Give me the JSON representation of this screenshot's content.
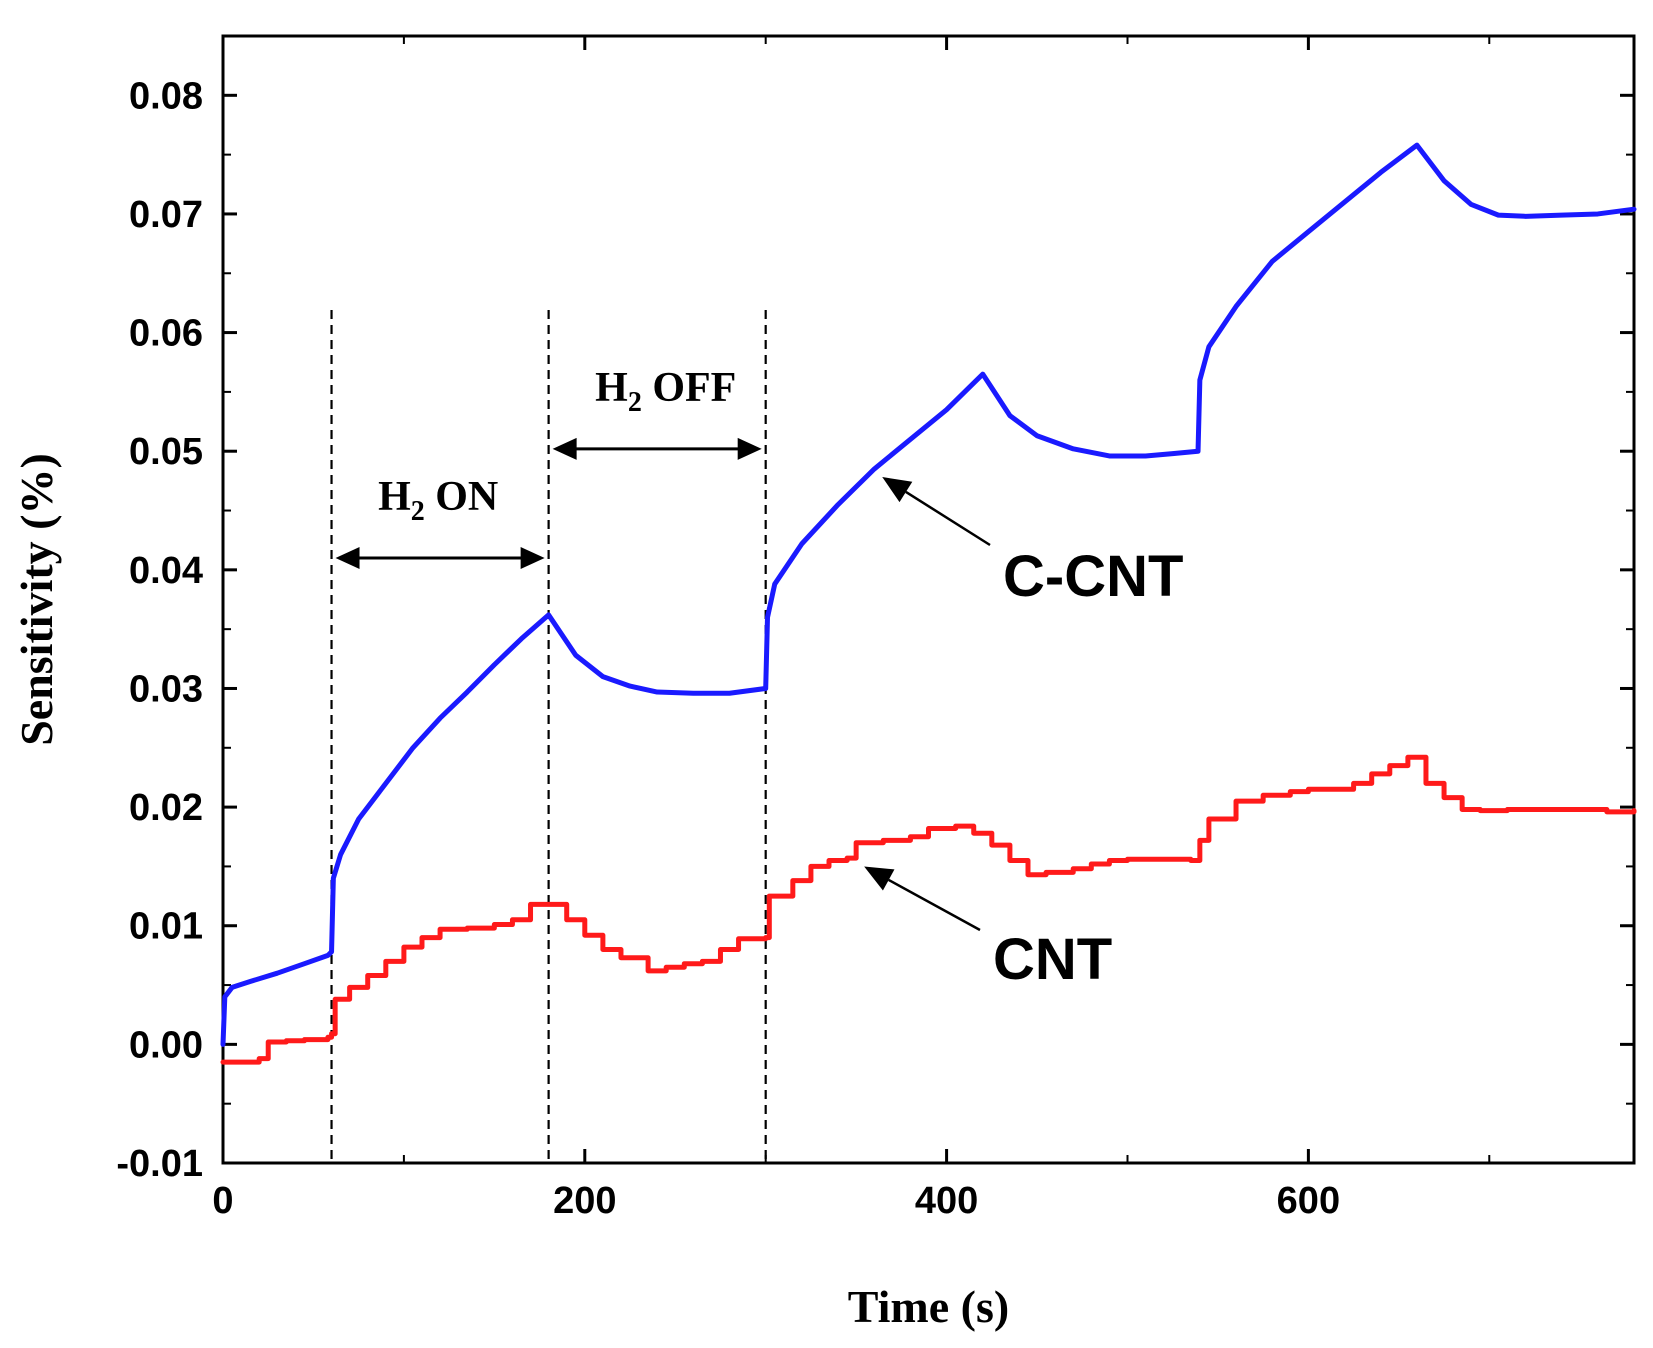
{
  "chart_data": {
    "type": "line",
    "title": "",
    "xlabel": "Time (s)",
    "ylabel": "Sensitivity (%)",
    "xlim": [
      0,
      780
    ],
    "ylim": [
      -0.01,
      0.085
    ],
    "x_ticks": [
      0,
      200,
      400,
      600
    ],
    "x_tick_labels": [
      "0",
      "200",
      "400",
      "600"
    ],
    "y_ticks": [
      -0.01,
      0.0,
      0.01,
      0.02,
      0.03,
      0.04,
      0.05,
      0.06,
      0.07,
      0.08
    ],
    "y_tick_labels": [
      "-0.01",
      "0.00",
      "0.01",
      "0.02",
      "0.03",
      "0.04",
      "0.05",
      "0.06",
      "0.07",
      "0.08"
    ],
    "grid": false,
    "series": [
      {
        "name": "C-CNT",
        "color": "#1a1aff",
        "points": [
          [
            0,
            0.0
          ],
          [
            1,
            0.004
          ],
          [
            5,
            0.0048
          ],
          [
            15,
            0.0053
          ],
          [
            30,
            0.006
          ],
          [
            45,
            0.0068
          ],
          [
            58,
            0.0075
          ],
          [
            60,
            0.0078
          ],
          [
            61,
            0.014
          ],
          [
            65,
            0.016
          ],
          [
            75,
            0.019
          ],
          [
            90,
            0.022
          ],
          [
            105,
            0.025
          ],
          [
            120,
            0.0275
          ],
          [
            135,
            0.0297
          ],
          [
            150,
            0.032
          ],
          [
            165,
            0.0342
          ],
          [
            180,
            0.0362
          ],
          [
            195,
            0.0328
          ],
          [
            210,
            0.031
          ],
          [
            225,
            0.0302
          ],
          [
            240,
            0.0297
          ],
          [
            260,
            0.0296
          ],
          [
            280,
            0.0296
          ],
          [
            300,
            0.03
          ],
          [
            301,
            0.036
          ],
          [
            305,
            0.0388
          ],
          [
            320,
            0.0422
          ],
          [
            340,
            0.0455
          ],
          [
            360,
            0.0485
          ],
          [
            380,
            0.051
          ],
          [
            400,
            0.0535
          ],
          [
            420,
            0.0565
          ],
          [
            435,
            0.053
          ],
          [
            450,
            0.0513
          ],
          [
            470,
            0.0502
          ],
          [
            490,
            0.0496
          ],
          [
            510,
            0.0496
          ],
          [
            525,
            0.0498
          ],
          [
            539,
            0.05
          ],
          [
            540,
            0.056
          ],
          [
            545,
            0.0588
          ],
          [
            560,
            0.0622
          ],
          [
            580,
            0.066
          ],
          [
            600,
            0.0685
          ],
          [
            620,
            0.071
          ],
          [
            640,
            0.0735
          ],
          [
            660,
            0.0758
          ],
          [
            675,
            0.0728
          ],
          [
            690,
            0.0708
          ],
          [
            705,
            0.0699
          ],
          [
            720,
            0.0698
          ],
          [
            740,
            0.0699
          ],
          [
            760,
            0.07
          ],
          [
            780,
            0.0704
          ]
        ]
      },
      {
        "name": "CNT",
        "color": "#ff1a1a",
        "step": true,
        "points": [
          [
            0,
            -0.0015
          ],
          [
            10,
            -0.0015
          ],
          [
            20,
            -0.0012
          ],
          [
            25,
            0.0002
          ],
          [
            35,
            0.0003
          ],
          [
            45,
            0.0004
          ],
          [
            58,
            0.0006
          ],
          [
            60,
            0.0009
          ],
          [
            62,
            0.0038
          ],
          [
            70,
            0.0048
          ],
          [
            80,
            0.0058
          ],
          [
            90,
            0.007
          ],
          [
            100,
            0.0082
          ],
          [
            110,
            0.009
          ],
          [
            120,
            0.0097
          ],
          [
            135,
            0.0098
          ],
          [
            150,
            0.0101
          ],
          [
            160,
            0.0105
          ],
          [
            170,
            0.0118
          ],
          [
            180,
            0.0118
          ],
          [
            190,
            0.0105
          ],
          [
            200,
            0.0092
          ],
          [
            210,
            0.008
          ],
          [
            220,
            0.0073
          ],
          [
            230,
            0.0073
          ],
          [
            235,
            0.0062
          ],
          [
            245,
            0.0065
          ],
          [
            255,
            0.0068
          ],
          [
            265,
            0.007
          ],
          [
            275,
            0.008
          ],
          [
            285,
            0.0089
          ],
          [
            300,
            0.009
          ],
          [
            302,
            0.0125
          ],
          [
            315,
            0.0138
          ],
          [
            325,
            0.015
          ],
          [
            335,
            0.0155
          ],
          [
            345,
            0.0157
          ],
          [
            350,
            0.017
          ],
          [
            365,
            0.0172
          ],
          [
            380,
            0.0175
          ],
          [
            390,
            0.0182
          ],
          [
            405,
            0.0184
          ],
          [
            415,
            0.0178
          ],
          [
            425,
            0.0168
          ],
          [
            435,
            0.0155
          ],
          [
            445,
            0.0143
          ],
          [
            455,
            0.0145
          ],
          [
            470,
            0.0148
          ],
          [
            480,
            0.0152
          ],
          [
            490,
            0.0155
          ],
          [
            500,
            0.0156
          ],
          [
            520,
            0.0156
          ],
          [
            535,
            0.0155
          ],
          [
            540,
            0.0172
          ],
          [
            545,
            0.019
          ],
          [
            560,
            0.0205
          ],
          [
            575,
            0.021
          ],
          [
            590,
            0.0213
          ],
          [
            600,
            0.0215
          ],
          [
            615,
            0.0215
          ],
          [
            625,
            0.022
          ],
          [
            635,
            0.0228
          ],
          [
            645,
            0.0235
          ],
          [
            655,
            0.0242
          ],
          [
            665,
            0.022
          ],
          [
            675,
            0.0208
          ],
          [
            685,
            0.0198
          ],
          [
            695,
            0.0197
          ],
          [
            710,
            0.0198
          ],
          [
            730,
            0.0198
          ],
          [
            750,
            0.0198
          ],
          [
            765,
            0.0196
          ],
          [
            780,
            0.0197
          ]
        ]
      }
    ],
    "vertical_lines": [
      60,
      180,
      300
    ],
    "annotations": [
      {
        "id": "h2-on",
        "main": "H",
        "sub": "2",
        "rest": " ON",
        "arrow_from": 60,
        "arrow_to": 180,
        "y": 0.041
      },
      {
        "id": "h2-off",
        "main": "H",
        "sub": "2",
        "rest": " OFF",
        "arrow_from": 180,
        "arrow_to": 300,
        "y": 0.0502
      }
    ],
    "series_labels": [
      {
        "text": "C-CNT",
        "target_series": "C-CNT",
        "target_x": 360,
        "target_y": 0.0485
      },
      {
        "text": "CNT",
        "target_series": "CNT",
        "target_x": 350,
        "target_y": 0.0155
      }
    ]
  }
}
